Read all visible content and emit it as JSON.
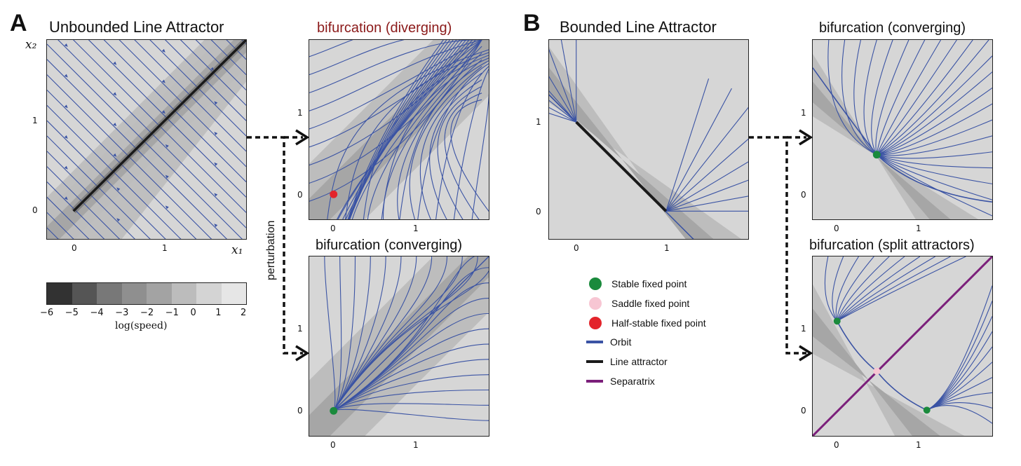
{
  "panel_a": {
    "letter": "A",
    "main_title": "Unbounded Line Attractor",
    "x_label": "x₁",
    "y_label": "x₂",
    "main_xticks": [
      "0",
      "1"
    ],
    "main_yticks": [
      "0",
      "1"
    ],
    "colorbar": {
      "ticks": [
        "−6",
        "−5",
        "−4",
        "−3",
        "−2",
        "−1",
        "0",
        "1",
        "2"
      ],
      "label": "log(speed)",
      "colors": [
        "#323232",
        "#555555",
        "#787878",
        "#8f8f8f",
        "#a3a3a3",
        "#bcbcbc",
        "#d4d4d4",
        "#e6e6e6",
        "#f5f5f5"
      ]
    },
    "perturbation_label": "perturbation",
    "top_sub": {
      "title": "bifurcation (diverging)",
      "xticks": [
        "0",
        "1"
      ],
      "yticks": [
        "0",
        "1"
      ]
    },
    "bottom_sub": {
      "title": "bifurcation (converging)",
      "xticks": [
        "0",
        "1"
      ],
      "yticks": [
        "0",
        "1"
      ]
    }
  },
  "panel_b": {
    "letter": "B",
    "main_title": "Bounded Line Attractor",
    "main_xticks": [
      "0",
      "1"
    ],
    "main_yticks": [
      "0",
      "1"
    ],
    "top_sub": {
      "title": "bifurcation (converging)",
      "xticks": [
        "0",
        "1"
      ],
      "yticks": [
        "0",
        "1"
      ]
    },
    "bottom_sub": {
      "title": "bifurcation (split attractors)",
      "xticks": [
        "0",
        "1"
      ],
      "yticks": [
        "0",
        "1"
      ]
    }
  },
  "legend": [
    {
      "label": "Stable fixed point",
      "kind": "dot",
      "color": "#1a8a3c"
    },
    {
      "label": "Saddle fixed point",
      "kind": "dot",
      "color": "#f7c6d3"
    },
    {
      "label": "Half-stable fixed point",
      "kind": "dot",
      "color": "#e3242b"
    },
    {
      "label": "Orbit",
      "kind": "line",
      "color": "#3a53a4"
    },
    {
      "label": "Line attractor",
      "kind": "line",
      "color": "#1a1a1a"
    },
    {
      "label": "Separatrix",
      "kind": "line",
      "color": "#7b1f7a"
    }
  ],
  "colors": {
    "orbit": "#3a53a4",
    "line_attractor": "#1a1a1a",
    "separatrix": "#7b1f7a",
    "stable": "#1a8a3c",
    "saddle": "#f7c6d3",
    "half_stable": "#e3242b",
    "bg_light": "#d6d6d6",
    "bg_mid": "#bdbdbd",
    "bg_dark": "#a6a6a6",
    "title_red": "#8b1a1a"
  }
}
